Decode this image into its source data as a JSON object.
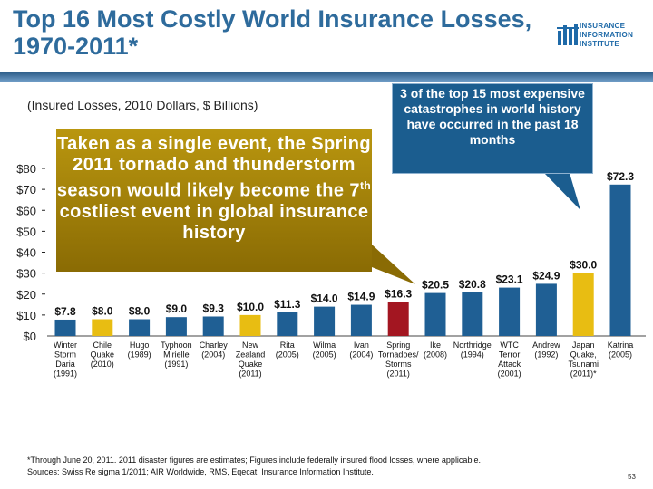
{
  "title": "Top 16 Most Costly World Insurance Losses, 1970-2011*",
  "subtitle": "(Insured Losses, 2010 Dollars, $ Billions)",
  "logo": {
    "line1": "INSURANCE",
    "line2": "INFORMATION",
    "line3": "INSTITUTE"
  },
  "callout_left": {
    "main": "Taken as a single event, the Spring 2011 tornado and thunderstorm season would likely become the 7",
    "sup": "th",
    "tail": " costliest event in global insurance history"
  },
  "callout_right": "3 of the top 15 most expensive catastrophes in world history have occurred in the past 18 months",
  "footnote_line1": "*Through June 20, 2011. 2011 disaster figures are estimates; Figures include federally insured flood losses, where applicable.",
  "footnote_line2": "Sources: Swiss Re sigma 1/2011; AIR Worldwide, RMS, Eqecat; Insurance Information Institute.",
  "page_number": "53",
  "colors": {
    "blue": "#1f5f94",
    "gold": "#e8bd12",
    "red": "#a31621",
    "title": "#2e6b9c"
  },
  "chart_data": {
    "type": "bar",
    "ylim": [
      0,
      80
    ],
    "yticks": [
      "$0",
      "$10",
      "$20",
      "$30",
      "$40",
      "$50",
      "$60",
      "$70",
      "$80"
    ],
    "categories": [
      [
        "Winter",
        "Storm",
        "Daria",
        "(1991)"
      ],
      [
        "Chile",
        "Quake",
        "(2010)"
      ],
      [
        "Hugo",
        "(1989)"
      ],
      [
        "Typhoon",
        "Mirielle",
        "(1991)"
      ],
      [
        "Charley",
        "(2004)"
      ],
      [
        "New",
        "Zealand",
        "Quake",
        "(2011)"
      ],
      [
        "Rita",
        "(2005)"
      ],
      [
        "Wilma",
        "(2005)"
      ],
      [
        "Ivan",
        "(2004)"
      ],
      [
        "Spring",
        "Tornadoes/",
        "Storms",
        "(2011)"
      ],
      [
        "Ike",
        "(2008)"
      ],
      [
        "Northridge",
        "(1994)"
      ],
      [
        "WTC",
        "Terror",
        "Attack",
        "(2001)"
      ],
      [
        "Andrew",
        "(1992)"
      ],
      [
        "Japan",
        "Quake,",
        "Tsunami",
        "(2011)*"
      ],
      [
        "Katrina",
        "(2005)"
      ]
    ],
    "values": [
      7.8,
      8.0,
      8.0,
      9.0,
      9.3,
      10.0,
      11.3,
      14.0,
      14.9,
      16.3,
      20.5,
      20.8,
      23.1,
      24.9,
      30.0,
      72.3
    ],
    "labels": [
      "$7.8",
      "$8.0",
      "$8.0",
      "$9.0",
      "$9.3",
      "$10.0",
      "$11.3",
      "$14.0",
      "$14.9",
      "$16.3",
      "$20.5",
      "$20.8",
      "$23.1",
      "$24.9",
      "$30.0",
      "$72.3"
    ],
    "bar_colors": [
      "blue",
      "gold",
      "blue",
      "blue",
      "blue",
      "gold",
      "blue",
      "blue",
      "blue",
      "red",
      "blue",
      "blue",
      "blue",
      "blue",
      "gold",
      "blue"
    ]
  }
}
